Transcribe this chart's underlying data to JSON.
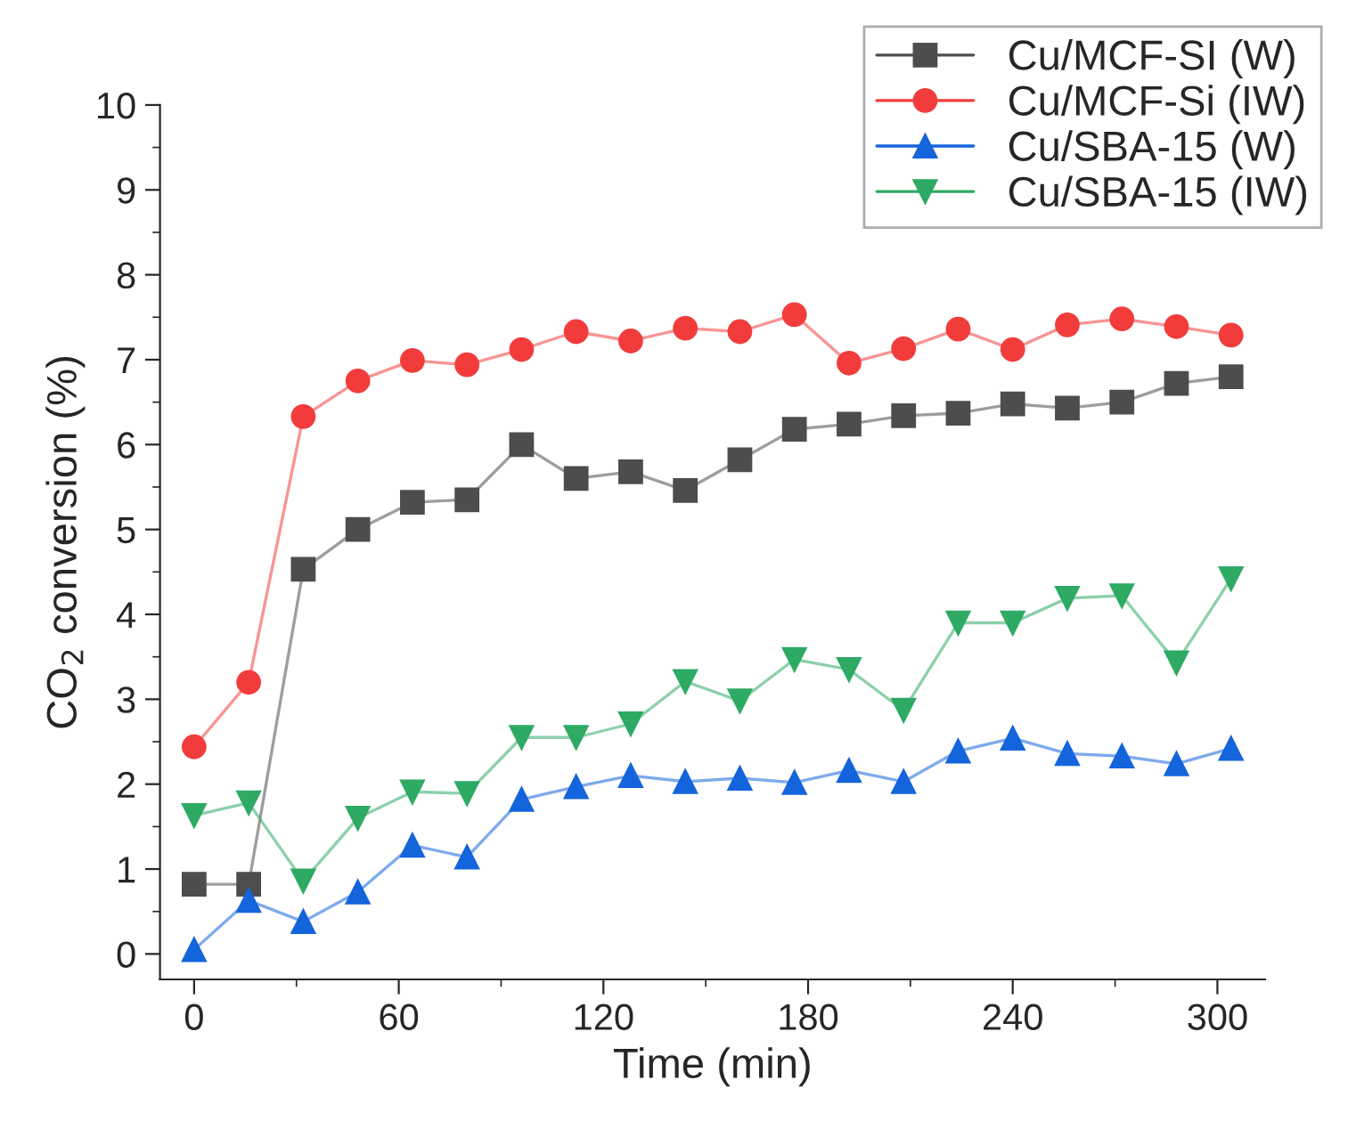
{
  "chart_data": {
    "type": "line",
    "xlabel": "Time (min)",
    "ylabel": "CO$_{2}$ conversion (%)",
    "x": [
      0,
      16,
      32,
      48,
      64,
      80,
      96,
      112,
      128,
      144,
      160,
      176,
      192,
      208,
      224,
      240,
      256,
      272,
      288,
      304
    ],
    "xlim": [
      -10,
      314
    ],
    "xticks": [
      0,
      60,
      120,
      180,
      240,
      300
    ],
    "ylim": [
      -0.3,
      10
    ],
    "yticks": [
      0,
      1,
      2,
      3,
      4,
      5,
      6,
      7,
      8,
      9,
      10
    ],
    "grid": false,
    "legend": "top right",
    "line_style": "solid",
    "series": [
      {
        "name": "Cu/MCF-SI (W)",
        "color": "#4d4d4d",
        "marker": "square",
        "values": [
          0.82,
          0.82,
          4.53,
          5.0,
          5.32,
          5.35,
          6.0,
          5.6,
          5.68,
          5.46,
          5.82,
          6.18,
          6.24,
          6.34,
          6.37,
          6.48,
          6.43,
          6.5,
          6.72,
          6.8
        ]
      },
      {
        "name": "Cu/MCF-Si (IW)",
        "color": "#f23c3c",
        "marker": "circle",
        "values": [
          2.44,
          3.2,
          6.33,
          6.75,
          6.99,
          6.94,
          7.12,
          7.33,
          7.22,
          7.37,
          7.33,
          7.53,
          6.96,
          7.13,
          7.36,
          7.12,
          7.41,
          7.48,
          7.39,
          7.29
        ]
      },
      {
        "name": "Cu/SBA-15 (W)",
        "color": "#1464dc",
        "marker": "triangle",
        "values": [
          0.05,
          0.63,
          0.38,
          0.73,
          1.28,
          1.14,
          1.82,
          1.97,
          2.1,
          2.03,
          2.07,
          2.02,
          2.16,
          2.03,
          2.39,
          2.54,
          2.36,
          2.33,
          2.24,
          2.42
        ]
      },
      {
        "name": "Cu/SBA-15 (IW)",
        "color": "#2eaa64",
        "marker": "triangle_down",
        "values": [
          1.63,
          1.78,
          0.86,
          1.6,
          1.91,
          1.89,
          2.55,
          2.55,
          2.71,
          3.21,
          2.98,
          3.47,
          3.35,
          2.87,
          3.9,
          3.9,
          4.19,
          4.22,
          3.43,
          4.42
        ]
      }
    ]
  }
}
